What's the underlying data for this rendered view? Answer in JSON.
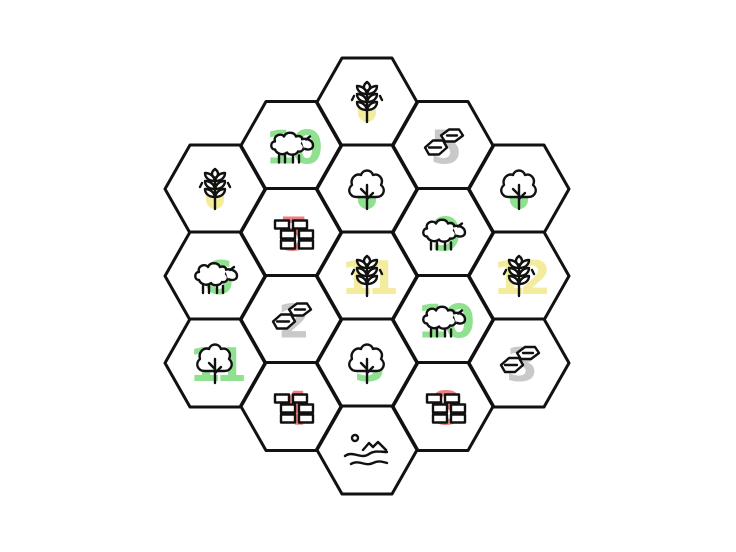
{
  "colors": {
    "grain": "#f3ec9c",
    "wool": "#8fe08f",
    "lumber": "#8fe08f",
    "brick": "#ec7f7f",
    "ore": "#c9c9c9",
    "desert": "#ffffff",
    "outline": "#111111"
  },
  "tiles": [
    {
      "id": "t1",
      "col": 2,
      "row": 0,
      "resource": "grain",
      "icon": "wheat-icon",
      "number": ""
    },
    {
      "id": "t2",
      "col": 1,
      "row": 1,
      "resource": "wool",
      "icon": "sheep-icon",
      "number": "10"
    },
    {
      "id": "t3",
      "col": 3,
      "row": 1,
      "resource": "ore",
      "icon": "ore-icon",
      "number": "5"
    },
    {
      "id": "t4",
      "col": 0,
      "row": 2,
      "resource": "grain",
      "icon": "wheat-icon",
      "number": ""
    },
    {
      "id": "t5",
      "col": 2,
      "row": 2,
      "resource": "lumber",
      "icon": "tree-icon",
      "number": ""
    },
    {
      "id": "t6",
      "col": 4,
      "row": 2,
      "resource": "lumber",
      "icon": "tree-icon",
      "number": ""
    },
    {
      "id": "t7",
      "col": 1,
      "row": 3,
      "resource": "brick",
      "icon": "brick-icon",
      "number": "5"
    },
    {
      "id": "t8",
      "col": 3,
      "row": 3,
      "resource": "wool",
      "icon": "sheep-icon",
      "number": "9"
    },
    {
      "id": "t9",
      "col": 0,
      "row": 4,
      "resource": "wool",
      "icon": "sheep-icon",
      "number": "6"
    },
    {
      "id": "t10",
      "col": 2,
      "row": 4,
      "resource": "grain",
      "icon": "wheat-icon",
      "number": "11"
    },
    {
      "id": "t11",
      "col": 4,
      "row": 4,
      "resource": "grain",
      "icon": "wheat-icon",
      "number": "12"
    },
    {
      "id": "t12",
      "col": 1,
      "row": 5,
      "resource": "ore",
      "icon": "ore-icon",
      "number": "2"
    },
    {
      "id": "t13",
      "col": 3,
      "row": 5,
      "resource": "wool",
      "icon": "sheep-icon",
      "number": "10"
    },
    {
      "id": "t14",
      "col": 0,
      "row": 6,
      "resource": "lumber",
      "icon": "tree-icon",
      "number": "11"
    },
    {
      "id": "t15",
      "col": 2,
      "row": 6,
      "resource": "lumber",
      "icon": "tree-icon",
      "number": "3"
    },
    {
      "id": "t16",
      "col": 4,
      "row": 6,
      "resource": "ore",
      "icon": "ore-icon",
      "number": "3"
    },
    {
      "id": "t17",
      "col": 1,
      "row": 7,
      "resource": "brick",
      "icon": "brick-icon",
      "number": "4"
    },
    {
      "id": "t18",
      "col": 3,
      "row": 7,
      "resource": "brick",
      "icon": "brick-icon",
      "number": "8"
    },
    {
      "id": "t19",
      "col": 2,
      "row": 8,
      "resource": "desert",
      "icon": "desert-icon",
      "number": ""
    }
  ]
}
